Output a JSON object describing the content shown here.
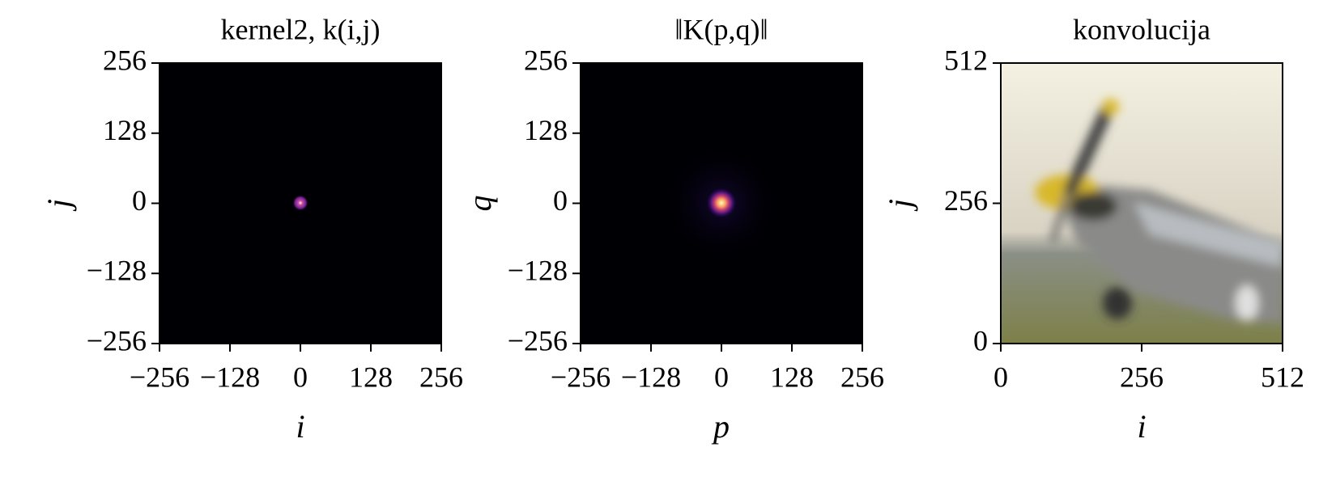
{
  "chart_data": [
    {
      "type": "image",
      "title": "kernel2, k(i,j)",
      "x_label": "i",
      "y_label": "j",
      "xlim": [
        -256,
        256
      ],
      "ylim": [
        -256,
        256
      ],
      "xticks": [
        {
          "value": -256,
          "label": "−256"
        },
        {
          "value": -128,
          "label": "−128"
        },
        0,
        128,
        256
      ],
      "yticks": [
        {
          "value": -256,
          "label": "−256"
        },
        {
          "value": -128,
          "label": "−128"
        },
        0,
        128,
        256
      ]
    },
    {
      "type": "image",
      "title": "‖K(p,q)‖",
      "x_label": "p",
      "y_label": "q",
      "xlim": [
        -256,
        256
      ],
      "ylim": [
        -256,
        256
      ],
      "xticks": [
        {
          "value": -256,
          "label": "−256"
        },
        {
          "value": -128,
          "label": "−128"
        },
        0,
        128,
        256
      ],
      "yticks": [
        {
          "value": -256,
          "label": "−256"
        },
        {
          "value": -128,
          "label": "−128"
        },
        0,
        128,
        256
      ]
    },
    {
      "type": "image",
      "title": "konvolucija",
      "x_label": "i",
      "y_label": "j",
      "xlim": [
        0,
        512
      ],
      "ylim": [
        0,
        512
      ],
      "xticks": [
        0,
        256,
        512
      ],
      "yticks": [
        0,
        256,
        512
      ]
    }
  ]
}
